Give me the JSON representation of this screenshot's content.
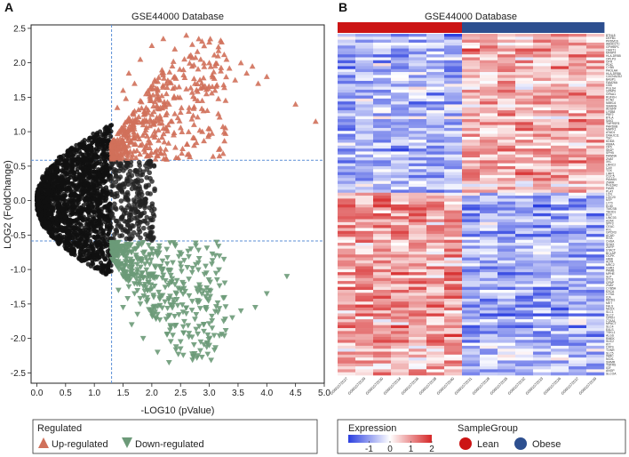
{
  "panels": {
    "a": "A",
    "b": "B"
  },
  "chart_data": [
    {
      "type": "scatter",
      "title": "GSE44000 Database",
      "xlabel": "-LOG10 (pValue)",
      "ylabel": "LOG2 (FoldChange)",
      "xlim": [
        -0.1,
        5.0
      ],
      "ylim": [
        -2.65,
        2.55
      ],
      "x_ticks": [
        "0.0",
        "0.5",
        "1.0",
        "1.5",
        "2.0",
        "2.5",
        "3.0",
        "3.5",
        "4.0",
        "4.5",
        "5.0"
      ],
      "y_ticks": [
        "-2.5",
        "-2.0",
        "-1.5",
        "-1.0",
        "-0.5",
        "0.0",
        "0.5",
        "1.0",
        "1.5",
        "2.0",
        "2.5"
      ],
      "thresholds": {
        "x": 1.3,
        "y_up": 0.585,
        "y_down": -0.585
      },
      "grid": false,
      "legend": {
        "title": "Regulated",
        "placement": "bottom",
        "items": [
          "Up-regulated",
          "Down-regulated"
        ]
      },
      "series": [
        {
          "name": "Up-regulated",
          "color": "#d0705a",
          "marker": "triangle-up",
          "points": [
            [
              1.35,
              0.62
            ],
            [
              1.4,
              0.75
            ],
            [
              1.45,
              0.9
            ],
            [
              1.5,
              1.05
            ],
            [
              1.55,
              0.7
            ],
            [
              1.6,
              1.2
            ],
            [
              1.65,
              0.85
            ],
            [
              1.7,
              1.3
            ],
            [
              1.75,
              0.95
            ],
            [
              1.8,
              1.45
            ],
            [
              1.85,
              1.1
            ],
            [
              1.9,
              0.8
            ],
            [
              1.95,
              1.55
            ],
            [
              2.0,
              1.25
            ],
            [
              2.05,
              0.92
            ],
            [
              2.1,
              1.6
            ],
            [
              2.15,
              1.35
            ],
            [
              2.2,
              1.05
            ],
            [
              2.25,
              1.7
            ],
            [
              2.3,
              1.4
            ],
            [
              2.35,
              1.15
            ],
            [
              2.4,
              1.8
            ],
            [
              2.45,
              1.5
            ],
            [
              2.5,
              1.28
            ],
            [
              2.55,
              1.9
            ],
            [
              2.6,
              1.62
            ],
            [
              2.65,
              1.35
            ],
            [
              2.7,
              1.95
            ],
            [
              2.75,
              1.7
            ],
            [
              2.8,
              1.45
            ],
            [
              2.85,
              2.05
            ],
            [
              2.9,
              1.78
            ],
            [
              2.95,
              1.55
            ],
            [
              3.0,
              2.0
            ],
            [
              3.05,
              1.82
            ],
            [
              3.1,
              1.6
            ],
            [
              3.15,
              2.1
            ],
            [
              3.2,
              1.88
            ],
            [
              3.25,
              1.68
            ],
            [
              3.3,
              2.05
            ],
            [
              3.35,
              1.92
            ],
            [
              3.45,
              1.75
            ],
            [
              3.55,
              2.0
            ],
            [
              3.65,
              1.85
            ],
            [
              3.75,
              1.95
            ],
            [
              3.85,
              1.7
            ],
            [
              4.0,
              1.8
            ],
            [
              4.5,
              1.4
            ],
            [
              4.85,
              1.15
            ],
            [
              2.0,
              2.25
            ],
            [
              2.2,
              2.35
            ],
            [
              1.8,
              2.05
            ],
            [
              1.6,
              1.85
            ],
            [
              2.4,
              2.2
            ],
            [
              1.5,
              1.6
            ],
            [
              1.7,
              1.7
            ],
            [
              3.0,
              2.3
            ],
            [
              2.6,
              2.4
            ],
            [
              1.4,
              1.35
            ],
            [
              1.55,
              1.48
            ]
          ]
        },
        {
          "name": "Down-regulated",
          "color": "#6c9a78",
          "marker": "triangle-down",
          "points": [
            [
              1.35,
              -0.65
            ],
            [
              1.4,
              -0.8
            ],
            [
              1.45,
              -0.95
            ],
            [
              1.5,
              -1.1
            ],
            [
              1.55,
              -0.72
            ],
            [
              1.6,
              -1.25
            ],
            [
              1.65,
              -0.88
            ],
            [
              1.7,
              -1.35
            ],
            [
              1.75,
              -1.0
            ],
            [
              1.8,
              -1.5
            ],
            [
              1.85,
              -1.12
            ],
            [
              1.9,
              -0.82
            ],
            [
              1.95,
              -1.58
            ],
            [
              2.0,
              -1.28
            ],
            [
              2.05,
              -0.95
            ],
            [
              2.1,
              -1.65
            ],
            [
              2.15,
              -1.38
            ],
            [
              2.2,
              -1.08
            ],
            [
              2.25,
              -1.72
            ],
            [
              2.3,
              -1.42
            ],
            [
              2.35,
              -1.18
            ],
            [
              2.4,
              -1.82
            ],
            [
              2.45,
              -1.52
            ],
            [
              2.5,
              -1.3
            ],
            [
              2.55,
              -1.92
            ],
            [
              2.6,
              -1.64
            ],
            [
              2.65,
              -1.38
            ],
            [
              2.7,
              -1.98
            ],
            [
              2.75,
              -1.72
            ],
            [
              2.8,
              -1.48
            ],
            [
              2.85,
              -2.05
            ],
            [
              2.9,
              -1.8
            ],
            [
              2.95,
              -1.58
            ],
            [
              3.0,
              -2.1
            ],
            [
              3.05,
              -1.85
            ],
            [
              3.15,
              -1.62
            ],
            [
              3.25,
              -1.75
            ],
            [
              3.4,
              -1.7
            ],
            [
              3.55,
              -1.6
            ],
            [
              3.8,
              -1.55
            ],
            [
              4.0,
              -1.35
            ],
            [
              4.35,
              -1.1
            ],
            [
              2.3,
              -2.35
            ],
            [
              2.1,
              -2.2
            ],
            [
              1.85,
              -2.0
            ],
            [
              1.65,
              -1.8
            ],
            [
              2.5,
              -2.15
            ],
            [
              1.5,
              -1.55
            ],
            [
              1.75,
              -1.65
            ],
            [
              3.0,
              -1.3
            ],
            [
              2.8,
              -2.25
            ],
            [
              1.42,
              -1.3
            ],
            [
              1.58,
              -1.42
            ],
            [
              2.95,
              -1.05
            ]
          ]
        }
      ]
    },
    {
      "type": "heatmap",
      "title": "GSE44000 Database",
      "samples": [
        "GSM1072027",
        "GSM1072029",
        "GSM1072030",
        "GSM1072034",
        "GSM1072036",
        "GSM1072038",
        "GSM1072040",
        "GSM1072031",
        "GSM1072028",
        "GSM1072035",
        "GSM1072032",
        "GSM1072033",
        "GSM1072026",
        "GSM1072037",
        "GSM1072039"
      ],
      "sample_groups": [
        "Lean",
        "Lean",
        "Lean",
        "Lean",
        "Lean",
        "Lean",
        "Lean",
        "Obese",
        "Obese",
        "Obese",
        "Obese",
        "Obese",
        "Obese",
        "Obese",
        "Obese"
      ],
      "genes": [
        "BTNL8",
        "DEFB1",
        "PRDM16",
        "ABHD17C",
        "GPIHBP1",
        "OAST1",
        "MFAP4",
        "HLA-DRB5",
        "OPLP3",
        "GFH",
        "PDIC",
        "CYB5",
        "PAOLAA",
        "HLA-DRB6",
        "CACNA2D2",
        "BASP1",
        "FAM26A",
        "CBS",
        "PGLS4",
        "GPAP9",
        "GPAA1",
        "RUFKH",
        "KCN2",
        "NMKL6",
        "SMARA",
        "ADGRF",
        "LYSB8",
        "PBF2",
        "BTLA",
        "SAIG",
        "TNFRSF8",
        "PARD6B",
        "MAPK1",
        "ATAD1",
        "DNAJC11",
        "TSC",
        "KDM3",
        "KBMA",
        "OF5",
        "SB1P",
        "SPH5",
        "PAWNA",
        "ZNAT",
        "XKL",
        "LRRC2",
        "CA9",
        "TOX",
        "LIRP1",
        "CLIC5",
        "PAMAN",
        "ZNRR",
        "PHLDA2",
        "FAM5",
        "PLAT",
        "LCN",
        "LOC20",
        "NTP",
        "LY70",
        "EL50",
        "TMCSB",
        "TBOD1",
        "ELN",
        "LINC03",
        "AZAK",
        "SPF3",
        "CEAC",
        "RYL",
        "GPCR3",
        "ACAD",
        "RITA",
        "CHSA",
        "SOAX",
        "ZMYP",
        "STACT",
        "BCLAP",
        "OCPK",
        "HIBB",
        "ALFA",
        "MRC2",
        "CHR2",
        "PAMB",
        "MPHE",
        "SLP",
        "STT3",
        "GPAP",
        "ZNAY",
        "CYB5A",
        "ESCA",
        "CYSA",
        "ICA",
        "RIPM1",
        "MET",
        "FALS",
        "NEGX",
        "SLC1",
        "SLC2",
        "GPKH",
        "CTAA1",
        "MPACT",
        "SLC4",
        "EALS",
        "TSKL1",
        "ALGS",
        "RMEK",
        "SUC2",
        "KIT",
        "CATS",
        "TONR",
        "SLC5",
        "INMC",
        "NOXL",
        "SMMR",
        "TNFRS",
        "IGF",
        "ANGP",
        "SLCOA"
      ],
      "color_scale": {
        "low": "#2b3fe0",
        "mid": "#ffffff",
        "high": "#d62728",
        "range": [
          -2,
          2
        ]
      },
      "group_colors": {
        "Lean": "#cc1414",
        "Obese": "#2d4f8f"
      },
      "legend": {
        "expression_title": "Expression",
        "expression_ticks": [
          "-1",
          "0",
          "1",
          "2"
        ],
        "group_title": "SampleGroup",
        "groups": [
          "Lean",
          "Obese"
        ],
        "placement": "bottom"
      }
    }
  ]
}
